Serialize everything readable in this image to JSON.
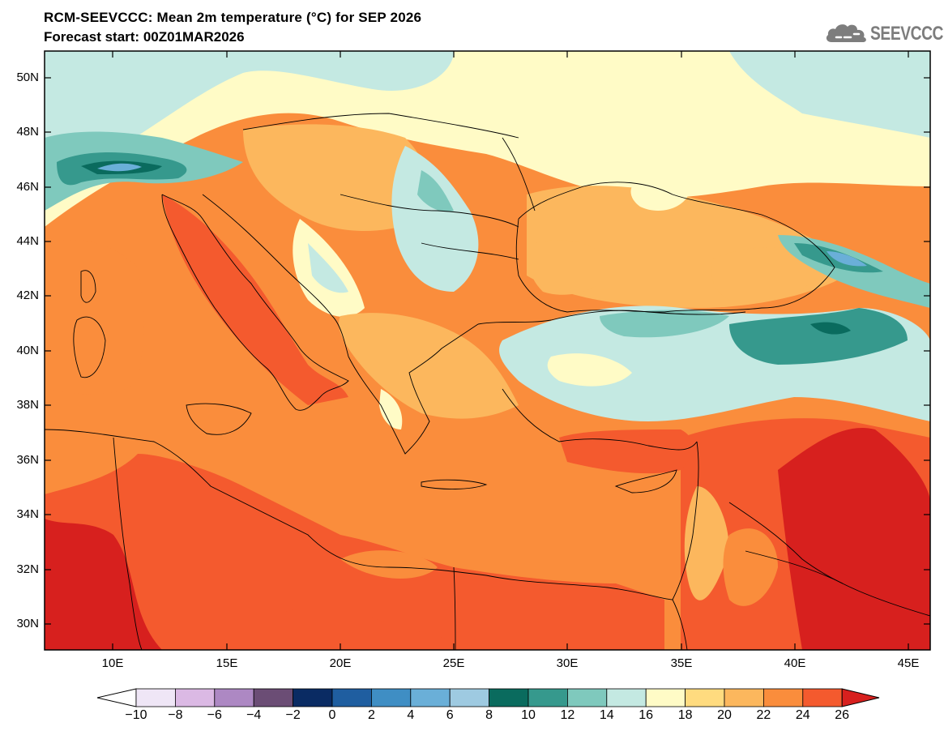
{
  "header": {
    "title": "RCM-SEEVCCC: Mean 2m temperature (°C) for SEP 2026",
    "subtitle": "Forecast start: 00Z01MAR2026"
  },
  "logo": {
    "text": "SEEVCCC",
    "icon": "cloud-icon",
    "color": "#7d7d7d"
  },
  "map": {
    "projection": "lat-lon",
    "lon_range": [
      7,
      46
    ],
    "lat_range": [
      29,
      51
    ],
    "lat_ticks": [
      "50N",
      "48N",
      "46N",
      "44N",
      "42N",
      "40N",
      "38N",
      "36N",
      "34N",
      "32N",
      "30N"
    ],
    "lon_ticks": [
      "10E",
      "15E",
      "20E",
      "25E",
      "30E",
      "35E",
      "40E",
      "45E"
    ]
  },
  "colorbar": {
    "labels": [
      "−10",
      "−8",
      "−6",
      "−4",
      "−2",
      "0",
      "2",
      "4",
      "6",
      "8",
      "10",
      "12",
      "14",
      "16",
      "18",
      "20",
      "22",
      "24",
      "26"
    ],
    "colors": [
      "#efe6f6",
      "#dbb9e4",
      "#ad88c3",
      "#6b4d75",
      "#0a2b63",
      "#1f5ea0",
      "#3f8ec4",
      "#6aafd8",
      "#9ecae1",
      "#0a6b5e",
      "#36998d",
      "#7fc9bd",
      "#c4e9e2",
      "#fffbc6",
      "#ffdb7f",
      "#fcb75d",
      "#fa8d3c",
      "#f45a2e"
    ],
    "under_color": "#ffffff",
    "over_color": "#d7201e"
  }
}
